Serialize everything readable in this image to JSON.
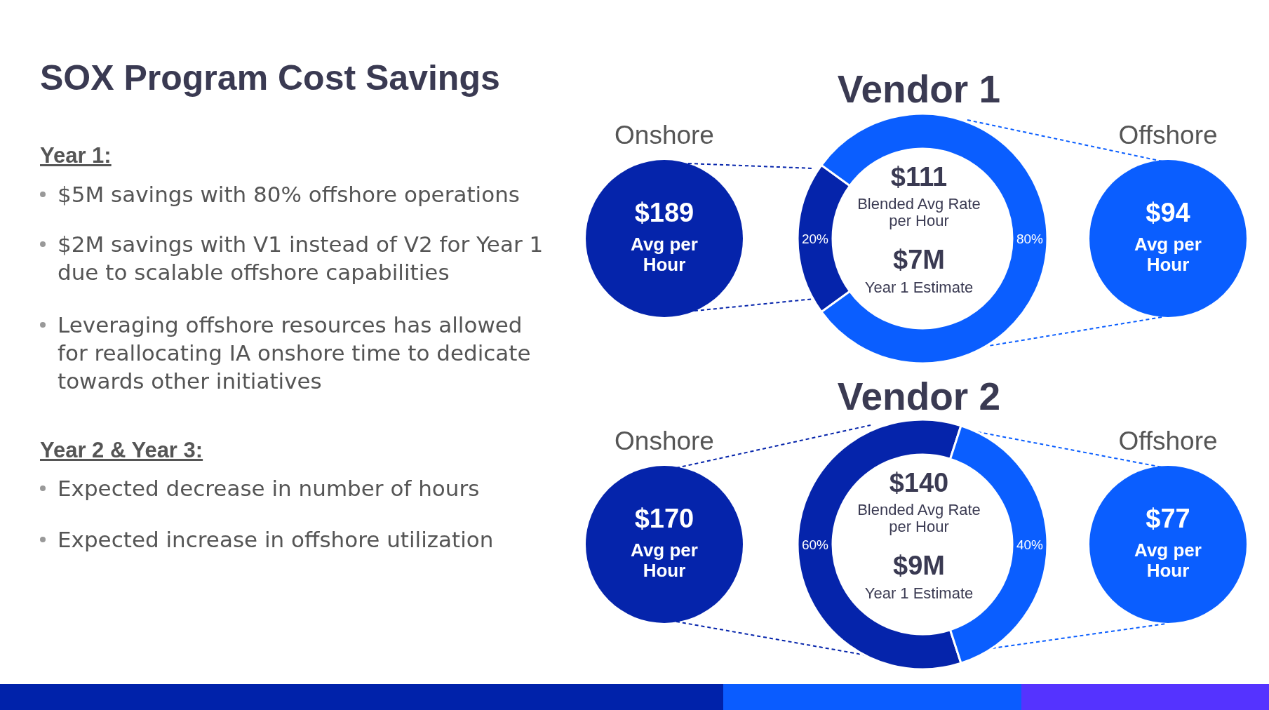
{
  "chart_data": [
    {
      "type": "other",
      "title": "SOX Program Cost Savings",
      "annotations": [
        "Year 1:",
        "$5M savings with 80% offshore operations",
        "$2M savings with V1 instead of V2 for Year 1 due to scalable offshore capabilities",
        "Leveraging offshore resources has allowed for reallocating IA onshore time to dedicate towards other initiatives",
        "Year 2 & Year 3:",
        "Expected decrease in number of hours",
        "Expected increase in offshore utilization"
      ]
    },
    {
      "type": "donut",
      "title": "Vendor 1",
      "categories": [
        "Onshore",
        "Offshore"
      ],
      "values": [
        20,
        80
      ],
      "colors": [
        "#0524ab",
        "#0a5eff"
      ],
      "value_labels": [
        "20%",
        "80%"
      ],
      "annotations": [
        "$111",
        "Blended Avg Rate per Hour",
        "$7M",
        "Year 1 Estimate",
        "$189",
        "Avg per Hour",
        "$94",
        "Avg per Hour"
      ]
    },
    {
      "type": "donut",
      "title": "Vendor 2",
      "categories": [
        "Onshore",
        "Offshore"
      ],
      "values": [
        60,
        40
      ],
      "colors": [
        "#0524ab",
        "#0a5eff"
      ],
      "value_labels": [
        "60%",
        "40%"
      ],
      "annotations": [
        "$140",
        "Blended Avg Rate per Hour",
        "$9M",
        "Year 1 Estimate",
        "$170",
        "Avg per Hour",
        "$77",
        "Avg per Hour"
      ]
    }
  ]
}
